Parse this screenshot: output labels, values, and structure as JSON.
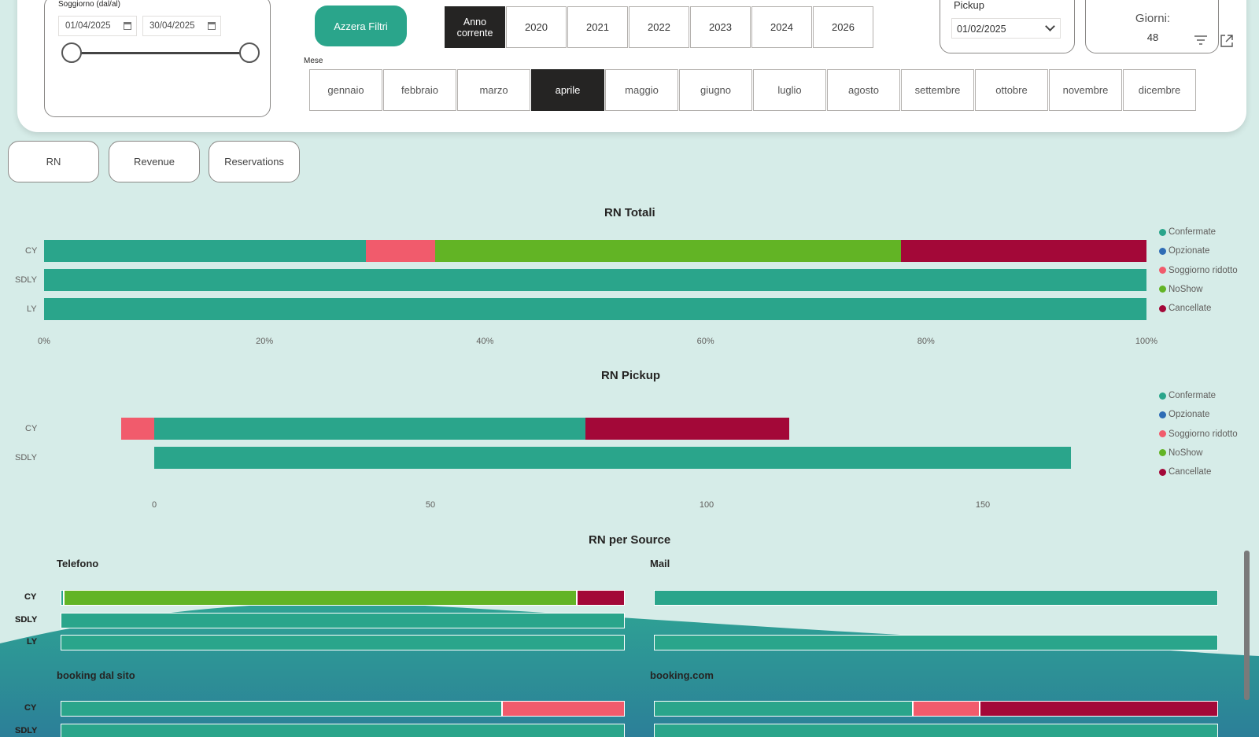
{
  "filters": {
    "stay_title": "Soggiorno (dal/al)",
    "date_from": "01/04/2025",
    "date_to": "30/04/2025",
    "reset_label": "Azzera Filtri",
    "years": [
      {
        "label": "Anno corrente",
        "selected": true
      },
      {
        "label": "2020",
        "selected": false
      },
      {
        "label": "2021",
        "selected": false
      },
      {
        "label": "2022",
        "selected": false
      },
      {
        "label": "2023",
        "selected": false
      },
      {
        "label": "2024",
        "selected": false
      },
      {
        "label": "2026",
        "selected": false
      }
    ],
    "month_label": "Mese",
    "months": [
      {
        "label": "gennaio",
        "selected": false
      },
      {
        "label": "febbraio",
        "selected": false
      },
      {
        "label": "marzo",
        "selected": false
      },
      {
        "label": "aprile",
        "selected": true
      },
      {
        "label": "maggio",
        "selected": false
      },
      {
        "label": "giugno",
        "selected": false
      },
      {
        "label": "luglio",
        "selected": false
      },
      {
        "label": "agosto",
        "selected": false
      },
      {
        "label": "settembre",
        "selected": false
      },
      {
        "label": "ottobre",
        "selected": false
      },
      {
        "label": "novembre",
        "selected": false
      },
      {
        "label": "dicembre",
        "selected": false
      }
    ],
    "pickup_title": "Pickup",
    "pickup_date": "01/02/2025",
    "days_label": "Giorni:",
    "days_value": "48"
  },
  "measures": [
    "RN",
    "Revenue",
    "Reservations"
  ],
  "colors": {
    "confermate": "#2aa58b",
    "opzionate": "#2e6cb5",
    "soggiorno_ridotto": "#f15b6c",
    "noshow": "#62b425",
    "cancellate": "#a30838"
  },
  "legend": [
    {
      "label": "Confermate",
      "color": "#2aa58b"
    },
    {
      "label": "Opzionate",
      "color": "#2e6cb5"
    },
    {
      "label": "Soggiorno ridotto",
      "color": "#f15b6c"
    },
    {
      "label": "NoShow",
      "color": "#62b425"
    },
    {
      "label": "Cancellate",
      "color": "#a30838"
    }
  ],
  "chart_data": [
    {
      "type": "bar",
      "orientation": "horizontal",
      "stacked": "100%",
      "title": "RN Totali",
      "categories": [
        "CY",
        "SDLY",
        "LY"
      ],
      "x_ticks": [
        "0%",
        "20%",
        "40%",
        "60%",
        "80%",
        "100%"
      ],
      "xlim": [
        0,
        100
      ],
      "legend_position": "right",
      "series": [
        {
          "name": "Confermate",
          "values": [
            29.2,
            100,
            100
          ]
        },
        {
          "name": "Opzionate",
          "values": [
            0,
            0,
            0
          ]
        },
        {
          "name": "Soggiorno ridotto",
          "values": [
            6.3,
            0,
            0
          ]
        },
        {
          "name": "NoShow",
          "values": [
            42.2,
            0,
            0
          ]
        },
        {
          "name": "Cancellate",
          "values": [
            22.3,
            0,
            0
          ]
        }
      ]
    },
    {
      "type": "bar",
      "orientation": "horizontal",
      "stacked": true,
      "title": "RN Pickup",
      "categories": [
        "CY",
        "SDLY"
      ],
      "x_ticks": [
        "0",
        "50",
        "100",
        "150"
      ],
      "xlim": [
        -6,
        180
      ],
      "legend_position": "right",
      "series": [
        {
          "name": "Confermate",
          "values": [
            78,
            166
          ]
        },
        {
          "name": "Opzionate",
          "values": [
            0,
            0
          ]
        },
        {
          "name": "Soggiorno ridotto",
          "values": [
            -6,
            0
          ]
        },
        {
          "name": "NoShow",
          "values": [
            0,
            0
          ]
        },
        {
          "name": "Cancellate",
          "values": [
            37,
            0
          ]
        }
      ]
    },
    {
      "type": "bar",
      "orientation": "horizontal",
      "stacked": "100%",
      "title": "RN per Source",
      "panels": [
        {
          "name": "Telefono",
          "categories": [
            "CY",
            "SDLY",
            "LY"
          ],
          "series": [
            {
              "name": "Confermate",
              "values": [
                0.5,
                100,
                100
              ]
            },
            {
              "name": "Opzionate",
              "values": [
                0,
                0,
                0
              ]
            },
            {
              "name": "Soggiorno ridotto",
              "values": [
                0,
                0,
                0
              ]
            },
            {
              "name": "NoShow",
              "values": [
                91,
                0,
                0
              ]
            },
            {
              "name": "Cancellate",
              "values": [
                8.5,
                0,
                0
              ]
            }
          ]
        },
        {
          "name": "Mail",
          "categories": [
            "CY",
            "SDLY",
            "LY"
          ],
          "series": [
            {
              "name": "Confermate",
              "values": [
                100,
                0,
                100
              ]
            },
            {
              "name": "Opzionate",
              "values": [
                0,
                0,
                0
              ]
            },
            {
              "name": "Soggiorno ridotto",
              "values": [
                0,
                0,
                0
              ]
            },
            {
              "name": "NoShow",
              "values": [
                0,
                0,
                0
              ]
            },
            {
              "name": "Cancellate",
              "values": [
                0,
                0,
                0
              ]
            }
          ]
        },
        {
          "name": "booking dal sito",
          "categories": [
            "CY",
            "SDLY"
          ],
          "series": [
            {
              "name": "Confermate",
              "values": [
                78.3,
                100
              ]
            },
            {
              "name": "Opzionate",
              "values": [
                0,
                0
              ]
            },
            {
              "name": "Soggiorno ridotto",
              "values": [
                21.7,
                0
              ]
            },
            {
              "name": "NoShow",
              "values": [
                0,
                0
              ]
            },
            {
              "name": "Cancellate",
              "values": [
                0,
                0
              ]
            }
          ]
        },
        {
          "name": "booking.com",
          "categories": [
            "CY",
            "SDLY"
          ],
          "series": [
            {
              "name": "Confermate",
              "values": [
                45.9,
                100
              ]
            },
            {
              "name": "Opzionate",
              "values": [
                0,
                0
              ]
            },
            {
              "name": "Soggiorno ridotto",
              "values": [
                11.8,
                0
              ]
            },
            {
              "name": "NoShow",
              "values": [
                0,
                0
              ]
            },
            {
              "name": "Cancellate",
              "values": [
                42.3,
                0
              ]
            }
          ]
        }
      ]
    }
  ]
}
